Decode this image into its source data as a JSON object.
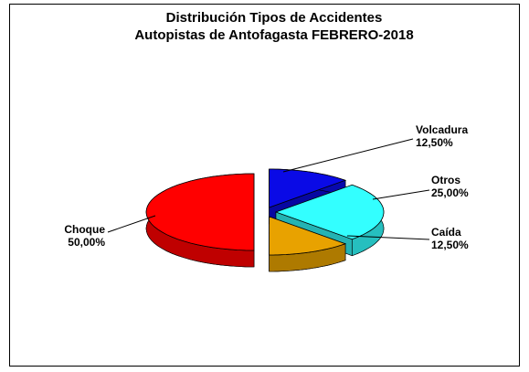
{
  "chart_data": {
    "type": "pie3d",
    "title": "Distribución Tipos de Accidentes",
    "subtitle": "Autopistas de Antofagasta FEBRERO-2018",
    "categories": [
      "Volcadura",
      "Otros",
      "Caída",
      "Choque"
    ],
    "values": [
      12.5,
      25,
      12.5,
      50
    ],
    "value_labels": [
      "12,50%",
      "25,00%",
      "12,50%",
      "50,00%"
    ],
    "colors": [
      "#0a0ae6",
      "#33ffff",
      "#e8a200",
      "#ff0000"
    ]
  }
}
